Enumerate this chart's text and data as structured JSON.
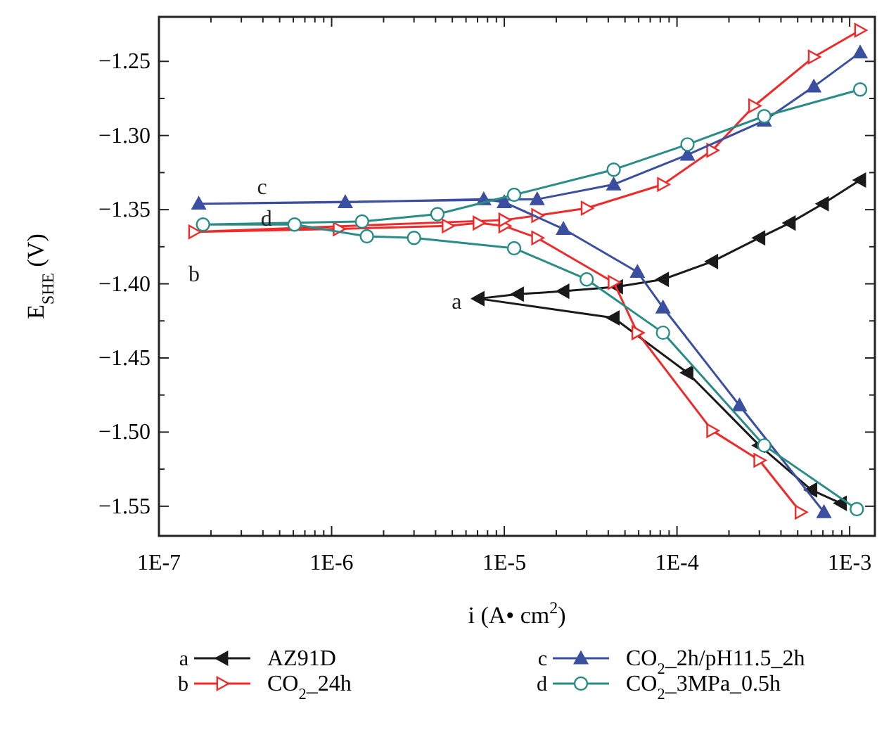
{
  "chart_data": {
    "type": "line",
    "xlabel": "i (A• cm$^{2}$)",
    "ylabel": "E$_{SHE}$ (V)",
    "log": "x",
    "xlim": [
      1e-07,
      0.0014
    ],
    "ylim": [
      -1.57,
      -1.22
    ],
    "xticks": [
      {
        "value": 1e-07,
        "label": "1E-7"
      },
      {
        "value": 2e-07,
        "label": null
      },
      {
        "value": 3e-07,
        "label": null
      },
      {
        "value": 4e-07,
        "label": null
      },
      {
        "value": 5e-07,
        "label": null
      },
      {
        "value": 6e-07,
        "label": null
      },
      {
        "value": 7e-07,
        "label": null
      },
      {
        "value": 8e-07,
        "label": null
      },
      {
        "value": 9e-07,
        "label": null
      },
      {
        "value": 1e-06,
        "label": "1E-6"
      },
      {
        "value": 2e-06,
        "label": null
      },
      {
        "value": 3e-06,
        "label": null
      },
      {
        "value": 4e-06,
        "label": null
      },
      {
        "value": 5e-06,
        "label": null
      },
      {
        "value": 6e-06,
        "label": null
      },
      {
        "value": 7e-06,
        "label": null
      },
      {
        "value": 8e-06,
        "label": null
      },
      {
        "value": 9e-06,
        "label": null
      },
      {
        "value": 1e-05,
        "label": "1E-5"
      },
      {
        "value": 2e-05,
        "label": null
      },
      {
        "value": 3e-05,
        "label": null
      },
      {
        "value": 4e-05,
        "label": null
      },
      {
        "value": 5e-05,
        "label": null
      },
      {
        "value": 6e-05,
        "label": null
      },
      {
        "value": 7e-05,
        "label": null
      },
      {
        "value": 8e-05,
        "label": null
      },
      {
        "value": 9e-05,
        "label": null
      },
      {
        "value": 0.0001,
        "label": "1E-4"
      },
      {
        "value": 0.0002,
        "label": null
      },
      {
        "value": 0.0003,
        "label": null
      },
      {
        "value": 0.0004,
        "label": null
      },
      {
        "value": 0.0005,
        "label": null
      },
      {
        "value": 0.0006,
        "label": null
      },
      {
        "value": 0.0007,
        "label": null
      },
      {
        "value": 0.0008,
        "label": null
      },
      {
        "value": 0.0009,
        "label": null
      },
      {
        "value": 0.001,
        "label": "1E-3"
      }
    ],
    "yticks": [
      {
        "value": -1.25,
        "label": "−1.25"
      },
      {
        "value": -1.275,
        "label": null
      },
      {
        "value": -1.3,
        "label": "−1.30"
      },
      {
        "value": -1.325,
        "label": null
      },
      {
        "value": -1.35,
        "label": "−1.35"
      },
      {
        "value": -1.375,
        "label": null
      },
      {
        "value": -1.4,
        "label": "−1.40"
      },
      {
        "value": -1.425,
        "label": null
      },
      {
        "value": -1.45,
        "label": "−1.45"
      },
      {
        "value": -1.475,
        "label": null
      },
      {
        "value": -1.5,
        "label": "−1.50"
      },
      {
        "value": -1.525,
        "label": null
      },
      {
        "value": -1.55,
        "label": "−1.55"
      }
    ],
    "grid": false,
    "legend": "bottom",
    "line_style": "solid",
    "series": [
      {
        "name": "AZ91D",
        "color": "#1a1a1a",
        "marker": "triangle-left",
        "x": [
          0.00089,
          0.0006,
          0.0003,
          0.000115,
          4.3e-05,
          7.1e-06,
          1.2e-05,
          2.2e-05,
          4.5e-05,
          8.3e-05,
          0.00016,
          0.0003,
          0.00045,
          0.0007,
          0.00115
        ],
        "values": [
          -1.548,
          -1.539,
          -1.509,
          -1.46,
          -1.423,
          -1.41,
          -1.407,
          -1.405,
          -1.402,
          -1.397,
          -1.385,
          -1.369,
          -1.359,
          -1.346,
          -1.33
        ]
      },
      {
        "name": "CO$_{2}$_24h",
        "color": "#ee2a2a",
        "marker": "triangle-right-open",
        "x": [
          0.00052,
          0.0003,
          0.00016,
          5.9e-05,
          4.3e-05,
          1.55e-05,
          1e-05,
          7.1e-06,
          4.7e-06,
          1.1e-06,
          1.6e-07,
          1e-05,
          1.55e-05,
          3e-05,
          8.3e-05,
          0.00016,
          0.00028,
          0.00062,
          0.00115
        ],
        "values": [
          -1.554,
          -1.519,
          -1.499,
          -1.433,
          -1.399,
          -1.369,
          -1.361,
          -1.359,
          -1.361,
          -1.363,
          -1.365,
          -1.357,
          -1.354,
          -1.349,
          -1.333,
          -1.31,
          -1.28,
          -1.247,
          -1.229
        ]
      },
      {
        "name": "CO$_{2}$_2h/pH11.5_2h",
        "color": "#3a4fa0",
        "marker": "triangle",
        "x": [
          0.00071,
          0.00023,
          8.3e-05,
          5.9e-05,
          2.2e-05,
          1e-05,
          7.6e-06,
          1.2e-06,
          1.7e-07,
          1.55e-05,
          4.3e-05,
          0.000115,
          0.00032,
          0.00062,
          0.00115
        ],
        "values": [
          -1.554,
          -1.482,
          -1.416,
          -1.392,
          -1.363,
          -1.345,
          -1.343,
          -1.345,
          -1.346,
          -1.343,
          -1.333,
          -1.313,
          -1.29,
          -1.267,
          -1.244
        ]
      },
      {
        "name": "CO$_{2}$_3MPa_0.5h",
        "color": "#2a8c86",
        "marker": "circle-open",
        "x": [
          0.0011,
          0.00032,
          8.3e-05,
          3e-05,
          1.14e-05,
          3e-06,
          1.6e-06,
          6.1e-07,
          1.8e-07,
          1.5e-06,
          4.1e-06,
          1.14e-05,
          4.3e-05,
          0.000115,
          0.00032,
          0.00115
        ],
        "values": [
          -1.552,
          -1.509,
          -1.433,
          -1.397,
          -1.376,
          -1.369,
          -1.368,
          -1.36,
          -1.36,
          -1.358,
          -1.353,
          -1.34,
          -1.323,
          -1.306,
          -1.287,
          -1.269
        ]
      }
    ],
    "annotations": [
      "a",
      "b",
      "c",
      "d"
    ]
  }
}
